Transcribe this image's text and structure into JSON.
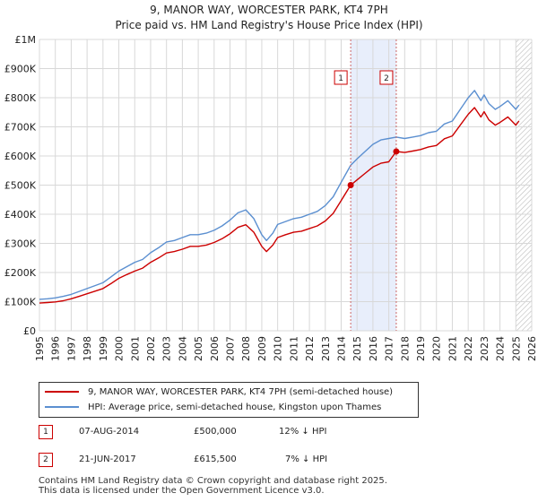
{
  "title_line1": "9, MANOR WAY, WORCESTER PARK, KT4 7PH",
  "title_line2": "Price paid vs. HM Land Registry's House Price Index (HPI)",
  "legend": {
    "property_label": "9, MANOR WAY, WORCESTER PARK, KT4 7PH (semi-detached house)",
    "hpi_label": "HPI: Average price, semi-detached house, Kingston upon Thames"
  },
  "sales": [
    {
      "n": "1",
      "date": "07-AUG-2014",
      "price": "£500,000",
      "delta": "12% ↓ HPI"
    },
    {
      "n": "2",
      "date": "21-JUN-2017",
      "price": "£615,500",
      "delta": "7% ↓ HPI"
    }
  ],
  "footer": {
    "line1": "Contains HM Land Registry data © Crown copyright and database right 2025.",
    "line2": "This data is licensed under the Open Government Licence v3.0."
  },
  "colors": {
    "property": "#cc0000",
    "hpi": "#5b8fd0",
    "band": "#e8eefb",
    "grid": "#d8d8d8"
  },
  "chart_data": {
    "type": "line",
    "title": "9, MANOR WAY, WORCESTER PARK, KT4 7PH — Price paid vs. HM Land Registry's House Price Index (HPI)",
    "xlim": [
      1995,
      2026
    ],
    "ylim": [
      0,
      1000000
    ],
    "x_ticks": [
      "1995",
      "1996",
      "1997",
      "1998",
      "1999",
      "2000",
      "2001",
      "2002",
      "2003",
      "2004",
      "2005",
      "2006",
      "2007",
      "2008",
      "2009",
      "2010",
      "2011",
      "2012",
      "2013",
      "2014",
      "2015",
      "2016",
      "2017",
      "2018",
      "2019",
      "2020",
      "2021",
      "2022",
      "2023",
      "2024",
      "2025",
      "2026"
    ],
    "y_ticks": [
      {
        "value": 0,
        "label": "£0"
      },
      {
        "value": 100000,
        "label": "£100K"
      },
      {
        "value": 200000,
        "label": "£200K"
      },
      {
        "value": 300000,
        "label": "£300K"
      },
      {
        "value": 400000,
        "label": "£400K"
      },
      {
        "value": 500000,
        "label": "£500K"
      },
      {
        "value": 600000,
        "label": "£600K"
      },
      {
        "value": 700000,
        "label": "£700K"
      },
      {
        "value": 800000,
        "label": "£800K"
      },
      {
        "value": 900000,
        "label": "£900K"
      },
      {
        "value": 1000000,
        "label": "£1M"
      }
    ],
    "shaded_period": [
      2014.6,
      2017.47
    ],
    "future_hatch_from": 2025.0,
    "markers": [
      {
        "label": "1",
        "x": 2014.6,
        "y": 500000
      },
      {
        "label": "2",
        "x": 2017.47,
        "y": 615500
      }
    ],
    "series": [
      {
        "name": "HPI: Average price, semi-detached house, Kingston upon Thames",
        "color": "#5b8fd0",
        "x": [
          1995.0,
          1995.5,
          1996.0,
          1996.5,
          1997.0,
          1997.5,
          1998.0,
          1998.5,
          1999.0,
          1999.5,
          2000.0,
          2000.5,
          2001.0,
          2001.5,
          2002.0,
          2002.5,
          2003.0,
          2003.5,
          2004.0,
          2004.5,
          2005.0,
          2005.5,
          2006.0,
          2006.5,
          2007.0,
          2007.5,
          2008.0,
          2008.5,
          2009.0,
          2009.3,
          2009.7,
          2010.0,
          2010.5,
          2011.0,
          2011.5,
          2012.0,
          2012.5,
          2013.0,
          2013.5,
          2014.0,
          2014.6,
          2015.0,
          2015.5,
          2016.0,
          2016.5,
          2017.0,
          2017.47,
          2018.0,
          2018.5,
          2019.0,
          2019.5,
          2020.0,
          2020.5,
          2021.0,
          2021.5,
          2022.0,
          2022.4,
          2022.8,
          2023.0,
          2023.3,
          2023.7,
          2024.0,
          2024.5,
          2025.0,
          2025.2
        ],
        "y": [
          108000,
          110000,
          113000,
          118000,
          125000,
          135000,
          145000,
          155000,
          165000,
          185000,
          205000,
          220000,
          235000,
          245000,
          268000,
          285000,
          305000,
          310000,
          320000,
          330000,
          330000,
          335000,
          345000,
          360000,
          380000,
          405000,
          415000,
          385000,
          330000,
          310000,
          335000,
          365000,
          375000,
          385000,
          390000,
          400000,
          410000,
          430000,
          460000,
          510000,
          568000,
          590000,
          615000,
          640000,
          655000,
          660000,
          665000,
          660000,
          665000,
          670000,
          680000,
          685000,
          710000,
          720000,
          760000,
          800000,
          825000,
          790000,
          810000,
          780000,
          760000,
          770000,
          790000,
          760000,
          775000
        ]
      },
      {
        "name": "9, MANOR WAY, WORCESTER PARK, KT4 7PH (semi-detached house)",
        "color": "#cc0000",
        "x": [
          1995.0,
          1995.5,
          1996.0,
          1996.5,
          1997.0,
          1997.5,
          1998.0,
          1998.5,
          1999.0,
          1999.5,
          2000.0,
          2000.5,
          2001.0,
          2001.5,
          2002.0,
          2002.5,
          2003.0,
          2003.5,
          2004.0,
          2004.5,
          2005.0,
          2005.5,
          2006.0,
          2006.5,
          2007.0,
          2007.5,
          2008.0,
          2008.5,
          2009.0,
          2009.3,
          2009.7,
          2010.0,
          2010.5,
          2011.0,
          2011.5,
          2012.0,
          2012.5,
          2013.0,
          2013.5,
          2014.0,
          2014.6,
          2015.0,
          2015.5,
          2016.0,
          2016.5,
          2017.0,
          2017.47,
          2018.0,
          2018.5,
          2019.0,
          2019.5,
          2020.0,
          2020.5,
          2021.0,
          2021.5,
          2022.0,
          2022.4,
          2022.8,
          2023.0,
          2023.3,
          2023.7,
          2024.0,
          2024.5,
          2025.0,
          2025.2
        ],
        "y": [
          95000,
          97000,
          99000,
          103000,
          110000,
          118000,
          127000,
          136000,
          145000,
          162000,
          180000,
          193000,
          205000,
          215000,
          235000,
          250000,
          267000,
          272000,
          280000,
          290000,
          290000,
          294000,
          303000,
          316000,
          333000,
          355000,
          364000,
          338000,
          290000,
          272000,
          294000,
          320000,
          330000,
          338000,
          342000,
          351000,
          360000,
          377000,
          403000,
          447000,
          500000,
          518000,
          540000,
          562000,
          575000,
          580000,
          615500,
          612000,
          617000,
          622000,
          631000,
          636000,
          659000,
          669000,
          706000,
          743000,
          766000,
          734000,
          752000,
          724000,
          706000,
          715000,
          734000,
          706000,
          720000
        ]
      }
    ]
  }
}
